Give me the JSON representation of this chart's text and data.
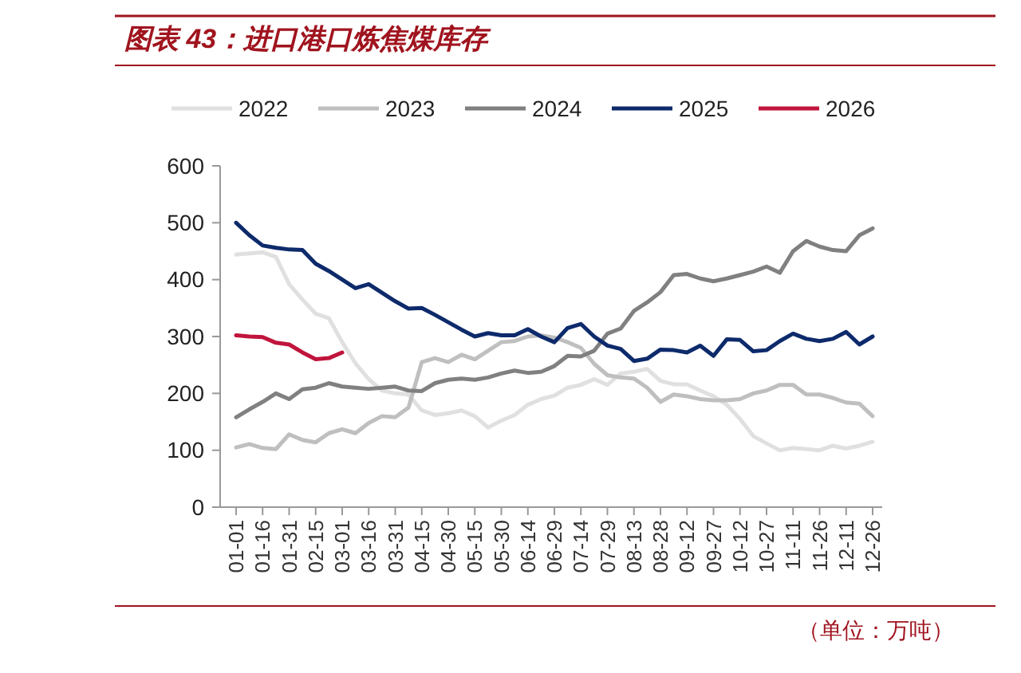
{
  "chart_data": {
    "type": "line",
    "title": "图表 43：进口港口炼焦煤库存",
    "categories": [
      "01-01",
      null,
      "01-16",
      null,
      "01-31",
      null,
      "02-15",
      null,
      "03-01",
      null,
      "03-16",
      null,
      "03-31",
      null,
      "04-15",
      null,
      "04-30",
      null,
      "05-15",
      null,
      "05-30",
      null,
      "06-14",
      null,
      "06-29",
      null,
      "07-14",
      null,
      "07-29",
      null,
      "08-13",
      null,
      "08-28",
      null,
      "09-12",
      null,
      "09-27",
      null,
      "10-12",
      null,
      "10-27",
      null,
      "11-11",
      null,
      "11-26",
      null,
      "12-11",
      null,
      "12-26"
    ],
    "series": [
      {
        "name": "2022",
        "color": "#e0e0e0",
        "values": [
          444,
          446,
          448,
          440,
          392,
          365,
          340,
          332,
          290,
          253,
          225,
          205,
          200,
          198,
          170,
          162,
          165,
          170,
          160,
          140,
          152,
          162,
          180,
          190,
          196,
          210,
          215,
          225,
          215,
          235,
          238,
          243,
          222,
          216,
          216,
          205,
          195,
          180,
          155,
          125,
          112,
          100,
          104,
          102,
          100,
          108,
          103,
          108,
          115
        ]
      },
      {
        "name": "2023",
        "color": "#bfbfbf",
        "values": [
          105,
          111,
          104,
          102,
          128,
          118,
          114,
          130,
          137,
          130,
          148,
          160,
          158,
          175,
          255,
          262,
          255,
          268,
          260,
          275,
          290,
          292,
          300,
          302,
          298,
          290,
          280,
          252,
          232,
          228,
          226,
          210,
          185,
          198,
          195,
          190,
          188,
          188,
          190,
          200,
          205,
          215,
          215,
          198,
          198,
          192,
          184,
          182,
          160
        ]
      },
      {
        "name": "2024",
        "color": "#808080",
        "values": [
          158,
          172,
          185,
          200,
          190,
          207,
          210,
          218,
          212,
          210,
          208,
          210,
          212,
          205,
          204,
          218,
          224,
          226,
          224,
          228,
          235,
          240,
          236,
          238,
          248,
          266,
          265,
          275,
          305,
          314,
          345,
          360,
          378,
          408,
          410,
          402,
          397,
          402,
          408,
          414,
          423,
          412,
          450,
          468,
          458,
          452,
          450,
          478,
          490
        ]
      },
      {
        "name": "2025",
        "color": "#0d2a6b",
        "values": [
          500,
          478,
          460,
          456,
          453,
          452,
          428,
          415,
          400,
          385,
          392,
          377,
          362,
          349,
          350,
          338,
          325,
          312,
          300,
          306,
          302,
          302,
          313,
          300,
          290,
          315,
          322,
          300,
          284,
          278,
          257,
          261,
          277,
          276,
          272,
          284,
          266,
          295,
          294,
          274,
          276,
          292,
          305,
          296,
          292,
          296,
          308,
          286,
          300
        ]
      },
      {
        "name": "2026",
        "color": "#c0143c",
        "values": [
          302,
          300,
          299,
          289,
          286,
          272,
          260,
          262,
          272,
          null,
          null,
          null,
          null,
          null,
          null,
          null,
          null,
          null,
          null,
          null,
          null,
          null,
          null,
          null,
          null,
          null,
          null,
          null,
          null,
          null,
          null,
          null,
          null,
          null,
          null,
          null,
          null,
          null,
          null,
          null,
          null,
          null,
          null,
          null,
          null,
          null,
          null,
          null,
          null
        ]
      }
    ],
    "ylim": [
      0,
      600
    ],
    "yticks": [
      0,
      100,
      200,
      300,
      400,
      500,
      600
    ],
    "legend": "top",
    "marker": "none",
    "line_style": "solid",
    "annotations": [
      "（单位：万吨）"
    ]
  }
}
